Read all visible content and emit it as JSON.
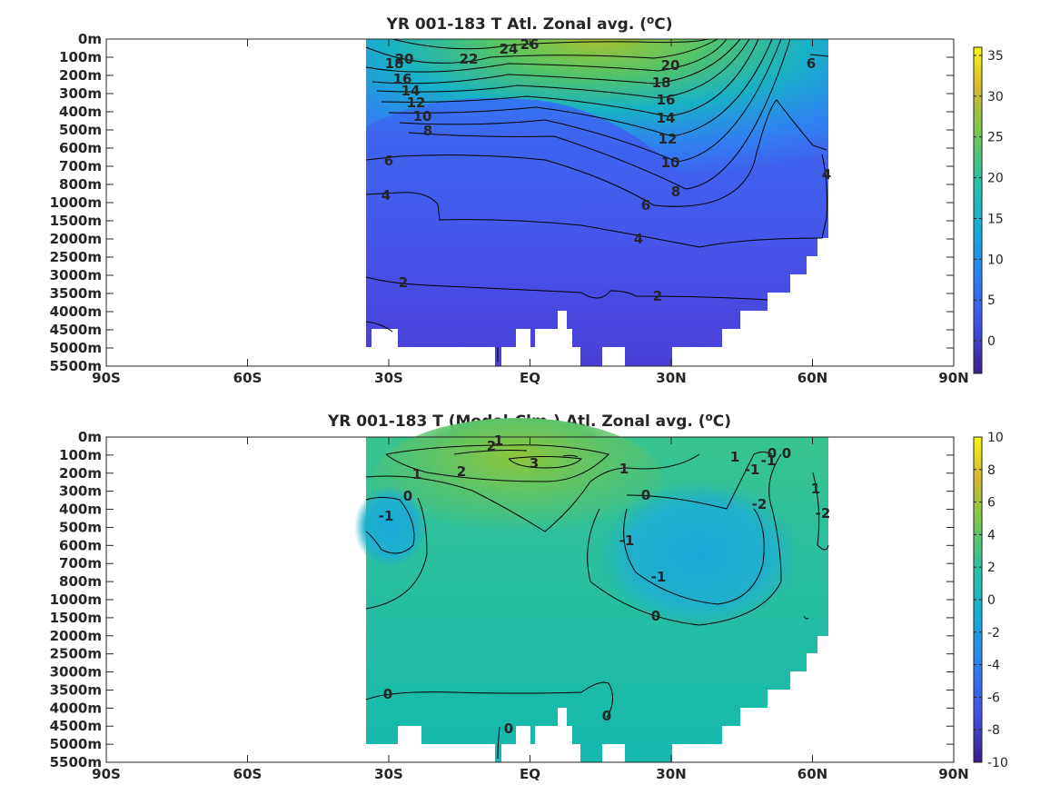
{
  "chart_data": [
    {
      "type": "heatmap",
      "title": "YR 001-183 T Atl. Zonal avg. (",
      "title_sup": "o",
      "title_end": "C)",
      "x_ticks": [
        "90S",
        "60S",
        "30S",
        "EQ",
        "30N",
        "60N",
        "90N"
      ],
      "x_values": [
        -90,
        -60,
        -30,
        0,
        30,
        60,
        90
      ],
      "xlim": [
        -90,
        90
      ],
      "y_ticks": [
        "0m",
        "100m",
        "200m",
        "300m",
        "400m",
        "500m",
        "600m",
        "700m",
        "800m",
        "1000m",
        "1500m",
        "2000m",
        "2500m",
        "3000m",
        "3500m",
        "4000m",
        "4500m",
        "5000m",
        "5500m"
      ],
      "colorbar": {
        "ticks": [
          "35",
          "30",
          "25",
          "20",
          "15",
          "10",
          "5",
          "0"
        ],
        "values": [
          35,
          30,
          25,
          20,
          15,
          10,
          5,
          0
        ],
        "range": [
          -4,
          36
        ]
      },
      "contour_labels": [
        "20",
        "18",
        "16",
        "14",
        "12",
        "10",
        "8",
        "24",
        "26",
        "22",
        "20",
        "18",
        "16",
        "14",
        "12",
        "10",
        "8",
        "6",
        "6",
        "6",
        "4",
        "4",
        "4",
        "2",
        "2"
      ],
      "data_extent_lat": [
        -34,
        64
      ]
    },
    {
      "type": "heatmap",
      "title": "YR 001-183 T (Model-Clm.) Atl. Zonal avg. (",
      "title_sup": "o",
      "title_end": "C)",
      "x_ticks": [
        "90S",
        "60S",
        "30S",
        "EQ",
        "30N",
        "60N",
        "90N"
      ],
      "x_values": [
        -90,
        -60,
        -30,
        0,
        30,
        60,
        90
      ],
      "xlim": [
        -90,
        90
      ],
      "y_ticks": [
        "0m",
        "100m",
        "200m",
        "300m",
        "400m",
        "500m",
        "600m",
        "700m",
        "800m",
        "1000m",
        "1500m",
        "2000m",
        "2500m",
        "3000m",
        "3500m",
        "4000m",
        "4500m",
        "5000m",
        "5500m"
      ],
      "colorbar": {
        "ticks": [
          "10",
          "8",
          "6",
          "4",
          "2",
          "0",
          "-2",
          "-4",
          "-6",
          "-8",
          "-10"
        ],
        "values": [
          10,
          8,
          6,
          4,
          2,
          0,
          -2,
          -4,
          -6,
          -8,
          -10
        ],
        "range": [
          -10,
          10
        ]
      },
      "contour_labels": [
        "2",
        "1",
        "2",
        "3",
        "1",
        "1",
        "0",
        "-1",
        "0",
        "-1",
        "-1",
        "0",
        "0",
        "1",
        "-1",
        "-1",
        "0",
        "-2",
        "1",
        "-2",
        "0",
        "0",
        "0"
      ],
      "data_extent_lat": [
        -34,
        64
      ]
    }
  ]
}
